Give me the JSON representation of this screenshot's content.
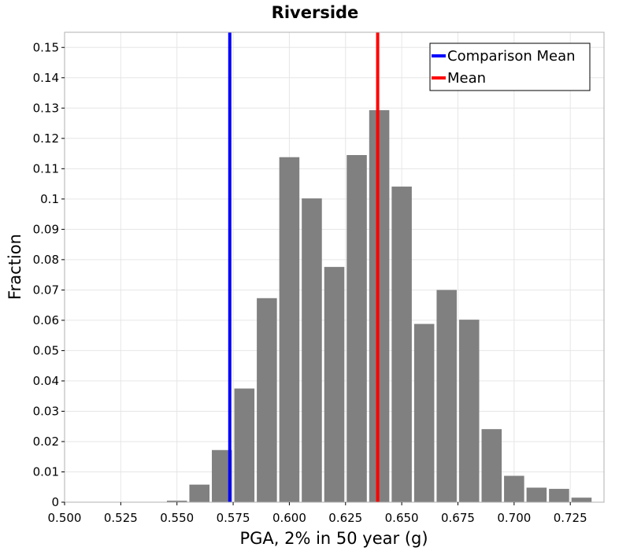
{
  "chart_data": {
    "type": "bar",
    "title": "Riverside",
    "xlabel": "PGA, 2% in 50 year (g)",
    "ylabel": "Fraction",
    "xlim": [
      0.5,
      0.74
    ],
    "ylim": [
      0,
      0.155
    ],
    "bin_width": 0.01,
    "x_ticks": [
      "0.500",
      "0.525",
      "0.550",
      "0.575",
      "0.600",
      "0.625",
      "0.650",
      "0.675",
      "0.700",
      "0.725"
    ],
    "y_ticks": [
      "0",
      "0.01",
      "0.02",
      "0.03",
      "0.04",
      "0.05",
      "0.06",
      "0.07",
      "0.08",
      "0.09",
      "0.1",
      "0.11",
      "0.12",
      "0.13",
      "0.14",
      "0.15"
    ],
    "bars": [
      {
        "x": 0.55,
        "value": 0.0005
      },
      {
        "x": 0.56,
        "value": 0.0058
      },
      {
        "x": 0.57,
        "value": 0.0172
      },
      {
        "x": 0.58,
        "value": 0.0375
      },
      {
        "x": 0.59,
        "value": 0.0673
      },
      {
        "x": 0.6,
        "value": 0.1138
      },
      {
        "x": 0.61,
        "value": 0.1002
      },
      {
        "x": 0.62,
        "value": 0.0776
      },
      {
        "x": 0.63,
        "value": 0.1145
      },
      {
        "x": 0.64,
        "value": 0.1293
      },
      {
        "x": 0.65,
        "value": 0.1041
      },
      {
        "x": 0.66,
        "value": 0.0588
      },
      {
        "x": 0.67,
        "value": 0.07
      },
      {
        "x": 0.68,
        "value": 0.0602
      },
      {
        "x": 0.69,
        "value": 0.0241
      },
      {
        "x": 0.7,
        "value": 0.0087
      },
      {
        "x": 0.71,
        "value": 0.0048
      },
      {
        "x": 0.72,
        "value": 0.0044
      },
      {
        "x": 0.73,
        "value": 0.0015
      }
    ],
    "vlines": [
      {
        "name": "Comparison Mean",
        "x": 0.5735,
        "color": "#0000ff"
      },
      {
        "name": "Mean",
        "x": 0.6393,
        "color": "#ff0000"
      }
    ],
    "bar_color": "#808080",
    "grid": true,
    "legend": "top-right"
  }
}
